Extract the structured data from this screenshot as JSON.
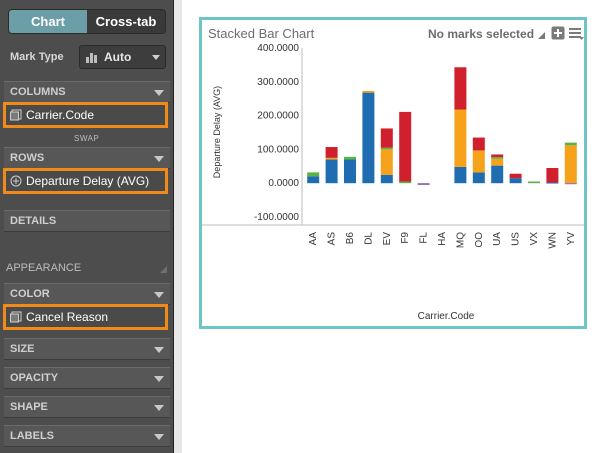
{
  "tabs": [
    {
      "label": "Chart",
      "active": true
    },
    {
      "label": "Cross-tab",
      "active": false
    }
  ],
  "mark_type": {
    "label": "Mark Type",
    "value": "Auto"
  },
  "sections": {
    "columns": "COLUMNS",
    "rows": "ROWS",
    "details": "DETAILS",
    "appearance": "APPEARANCE",
    "color": "COLOR",
    "size": "SIZE",
    "opacity": "OPACITY",
    "shape": "SHAPE",
    "labels": "LABELS"
  },
  "swap_label": "SWAP",
  "shelves": {
    "columns_pill": "Carrier.Code",
    "rows_pill": "Departure Delay (AVG)",
    "color_pill": "Cancel Reason"
  },
  "chart": {
    "title": "Stacked Bar Chart",
    "status": "No marks selected"
  },
  "colors": {
    "accent_teal": "#6dc5c8",
    "highlight_orange": "#f28a1a",
    "series_blue": "#1f6cb0",
    "series_orange": "#f7a21b",
    "series_green": "#5bb347",
    "series_red": "#d0202e",
    "series_purple": "#8b5fb0"
  },
  "chart_data": {
    "type": "bar",
    "stacked": true,
    "xlabel": "Carrier.Code",
    "ylabel": "Departure Delay (AVG)",
    "ylim": [
      -100,
      400
    ],
    "yticks": [
      "400.0000",
      "300.0000",
      "200.0000",
      "100.0000",
      "0.0000",
      "-100.0000"
    ],
    "ytick_values": [
      400,
      300,
      200,
      100,
      0,
      -100
    ],
    "categories": [
      "AA",
      "AS",
      "B6",
      "DL",
      "EV",
      "F9",
      "FL",
      "HA",
      "MQ",
      "OO",
      "UA",
      "US",
      "VX",
      "WN",
      "YV"
    ],
    "series": [
      {
        "color": "#1f6cb0",
        "values": [
          20,
          70,
          70,
          268,
          25,
          0,
          0,
          0,
          48,
          32,
          52,
          15,
          0,
          2,
          0
        ]
      },
      {
        "color": "#f7a21b",
        "values": [
          0,
          5,
          0,
          5,
          75,
          0,
          0,
          0,
          170,
          65,
          20,
          0,
          0,
          0,
          112
        ]
      },
      {
        "color": "#5bb347",
        "values": [
          12,
          0,
          8,
          0,
          5,
          5,
          0,
          0,
          0,
          0,
          5,
          0,
          5,
          0,
          8
        ]
      },
      {
        "color": "#d0202e",
        "values": [
          0,
          32,
          0,
          0,
          57,
          206,
          0,
          0,
          125,
          38,
          8,
          13,
          0,
          43,
          0
        ]
      },
      {
        "color": "#8b5fb0",
        "values": [
          0,
          0,
          0,
          0,
          0,
          0,
          -5,
          0,
          0,
          0,
          0,
          0,
          0,
          0,
          -3
        ]
      }
    ]
  }
}
